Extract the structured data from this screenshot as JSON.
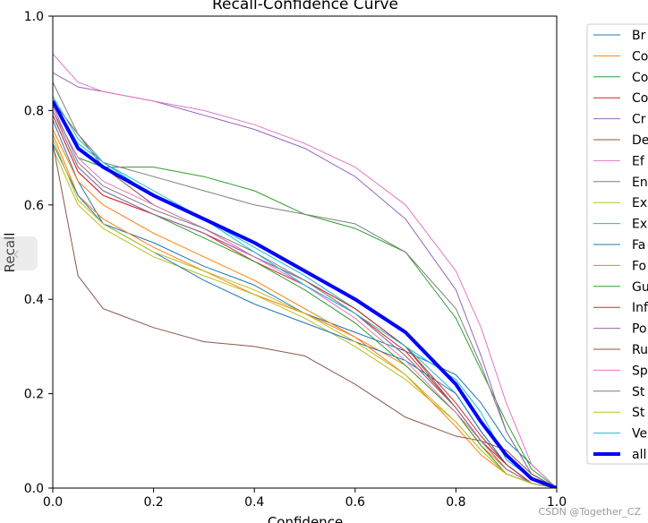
{
  "chart_data": {
    "type": "line",
    "title": "Recall-Confidence Curve",
    "xlabel": "Confidence",
    "ylabel": "Recall",
    "xlim": [
      0,
      1
    ],
    "ylim": [
      0,
      1
    ],
    "xticks": [
      "0.0",
      "0.2",
      "0.4",
      "0.6",
      "0.8",
      "1.0"
    ],
    "yticks": [
      "0.0",
      "0.2",
      "0.4",
      "0.6",
      "0.8",
      "1.0"
    ],
    "grid": false,
    "legend_position": "right-outside",
    "x": [
      0.0,
      0.05,
      0.1,
      0.2,
      0.3,
      0.4,
      0.5,
      0.6,
      0.7,
      0.8,
      0.85,
      0.9,
      0.95,
      1.0
    ],
    "series": [
      {
        "name": "Br",
        "color": "#1f77b4",
        "width": 1,
        "values": [
          0.78,
          0.65,
          0.56,
          0.52,
          0.47,
          0.43,
          0.37,
          0.33,
          0.29,
          0.24,
          0.18,
          0.1,
          0.05,
          0.0
        ]
      },
      {
        "name": "Co",
        "color": "#ff7f0e",
        "width": 1,
        "values": [
          0.75,
          0.62,
          0.57,
          0.51,
          0.46,
          0.41,
          0.37,
          0.32,
          0.26,
          0.16,
          0.09,
          0.04,
          0.01,
          0.0
        ]
      },
      {
        "name": "Co",
        "color": "#2ca02c",
        "width": 1,
        "values": [
          0.8,
          0.7,
          0.68,
          0.68,
          0.66,
          0.63,
          0.58,
          0.55,
          0.5,
          0.36,
          0.25,
          0.14,
          0.04,
          0.0
        ]
      },
      {
        "name": "Co",
        "color": "#d62728",
        "width": 1,
        "values": [
          0.79,
          0.67,
          0.62,
          0.58,
          0.54,
          0.48,
          0.43,
          0.37,
          0.29,
          0.17,
          0.1,
          0.05,
          0.01,
          0.0
        ]
      },
      {
        "name": "Cr",
        "color": "#9467bd",
        "width": 1,
        "values": [
          0.88,
          0.85,
          0.84,
          0.82,
          0.79,
          0.76,
          0.72,
          0.66,
          0.57,
          0.42,
          0.28,
          0.12,
          0.03,
          0.0
        ]
      },
      {
        "name": "De",
        "color": "#8c564b",
        "width": 1,
        "values": [
          0.82,
          0.75,
          0.68,
          0.6,
          0.55,
          0.49,
          0.44,
          0.38,
          0.3,
          0.17,
          0.1,
          0.04,
          0.01,
          0.0
        ]
      },
      {
        "name": "Ef",
        "color": "#e377c2",
        "width": 1,
        "values": [
          0.92,
          0.86,
          0.84,
          0.82,
          0.8,
          0.77,
          0.73,
          0.68,
          0.6,
          0.46,
          0.34,
          0.18,
          0.05,
          0.0
        ]
      },
      {
        "name": "En",
        "color": "#7f7f7f",
        "width": 1,
        "values": [
          0.86,
          0.75,
          0.69,
          0.66,
          0.63,
          0.6,
          0.58,
          0.56,
          0.5,
          0.38,
          0.26,
          0.12,
          0.03,
          0.0
        ]
      },
      {
        "name": "Ex",
        "color": "#bcbd22",
        "width": 1,
        "values": [
          0.72,
          0.6,
          0.55,
          0.49,
          0.45,
          0.41,
          0.36,
          0.3,
          0.23,
          0.14,
          0.08,
          0.03,
          0.01,
          0.0
        ]
      },
      {
        "name": "Ex",
        "color": "#17becf",
        "width": 1,
        "values": [
          0.82,
          0.73,
          0.69,
          0.63,
          0.57,
          0.51,
          0.45,
          0.38,
          0.3,
          0.2,
          0.12,
          0.05,
          0.01,
          0.0
        ]
      },
      {
        "name": "Fa",
        "color": "#1f77b4",
        "width": 1,
        "values": [
          0.73,
          0.62,
          0.56,
          0.5,
          0.44,
          0.39,
          0.35,
          0.31,
          0.27,
          0.2,
          0.12,
          0.05,
          0.01,
          0.0
        ]
      },
      {
        "name": "Fo",
        "color": "#ff7f0e",
        "width": 1,
        "values": [
          0.76,
          0.65,
          0.6,
          0.54,
          0.49,
          0.44,
          0.38,
          0.32,
          0.24,
          0.13,
          0.07,
          0.03,
          0.01,
          0.0
        ]
      },
      {
        "name": "Gu",
        "color": "#2ca02c",
        "width": 1,
        "values": [
          0.8,
          0.68,
          0.63,
          0.58,
          0.53,
          0.48,
          0.42,
          0.35,
          0.26,
          0.16,
          0.09,
          0.03,
          0.01,
          0.0
        ]
      },
      {
        "name": "Inf",
        "color": "#d62728",
        "width": 1,
        "values": [
          0.79,
          0.67,
          0.62,
          0.58,
          0.54,
          0.49,
          0.44,
          0.38,
          0.3,
          0.18,
          0.11,
          0.05,
          0.01,
          0.0
        ]
      },
      {
        "name": "Po",
        "color": "#9467bd",
        "width": 1,
        "values": [
          0.8,
          0.68,
          0.63,
          0.58,
          0.54,
          0.49,
          0.44,
          0.37,
          0.28,
          0.17,
          0.1,
          0.04,
          0.01,
          0.0
        ]
      },
      {
        "name": "Ru",
        "color": "#8c564b",
        "width": 1,
        "values": [
          0.73,
          0.45,
          0.38,
          0.34,
          0.31,
          0.3,
          0.28,
          0.22,
          0.15,
          0.11,
          0.1,
          0.08,
          0.03,
          0.0
        ]
      },
      {
        "name": "Sp",
        "color": "#e377c2",
        "width": 1,
        "values": [
          0.8,
          0.7,
          0.65,
          0.6,
          0.55,
          0.49,
          0.43,
          0.36,
          0.27,
          0.16,
          0.1,
          0.04,
          0.01,
          0.0
        ]
      },
      {
        "name": "St",
        "color": "#7f7f7f",
        "width": 1,
        "values": [
          0.81,
          0.69,
          0.64,
          0.59,
          0.55,
          0.5,
          0.44,
          0.37,
          0.28,
          0.17,
          0.1,
          0.04,
          0.01,
          0.0
        ]
      },
      {
        "name": "St",
        "color": "#bcbd22",
        "width": 1,
        "values": [
          0.74,
          0.61,
          0.56,
          0.5,
          0.46,
          0.42,
          0.37,
          0.31,
          0.24,
          0.14,
          0.08,
          0.03,
          0.01,
          0.0
        ]
      },
      {
        "name": "Ve",
        "color": "#17becf",
        "width": 1,
        "values": [
          0.83,
          0.74,
          0.69,
          0.62,
          0.57,
          0.5,
          0.43,
          0.37,
          0.3,
          0.23,
          0.16,
          0.06,
          0.02,
          0.0
        ]
      },
      {
        "name": "all",
        "color": "#0000ff",
        "width": 4,
        "values": [
          0.82,
          0.72,
          0.68,
          0.62,
          0.57,
          0.52,
          0.46,
          0.4,
          0.33,
          0.22,
          0.14,
          0.07,
          0.02,
          0.0
        ]
      }
    ]
  },
  "watermark": "CSDN @Together_CZ"
}
